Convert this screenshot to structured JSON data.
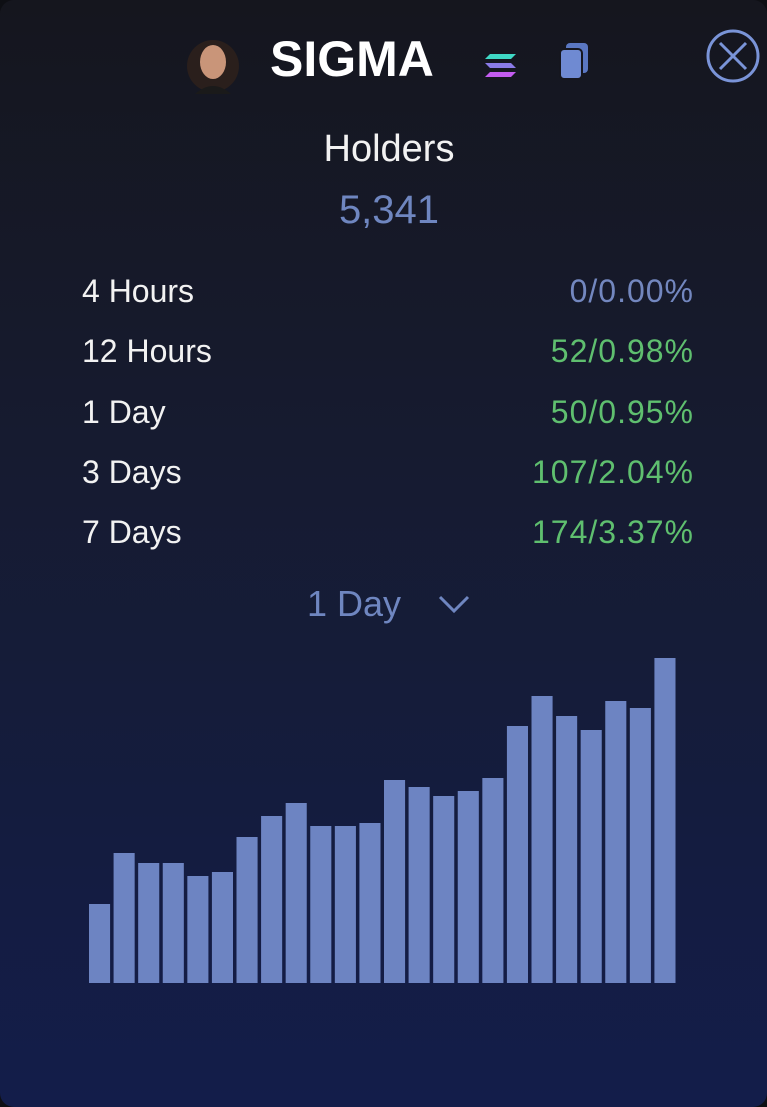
{
  "header": {
    "title": "SIGMA"
  },
  "holders": {
    "label": "Holders",
    "count": "5,341"
  },
  "stats": [
    {
      "label": "4 Hours",
      "value": "0/0.00%",
      "color": "#7387bf"
    },
    {
      "label": "12 Hours",
      "value": "52/0.98%",
      "color": "#5fbf6f"
    },
    {
      "label": "1 Day",
      "value": "50/0.95%",
      "color": "#5fbf6f"
    },
    {
      "label": "3 Days",
      "value": "107/2.04%",
      "color": "#5fbf6f"
    },
    {
      "label": "7 Days",
      "value": "174/3.37%",
      "color": "#5fbf6f"
    }
  ],
  "period_selector": {
    "label": "1 Day"
  },
  "chart_data": {
    "type": "bar",
    "color": "#6d84c2",
    "values": [
      79,
      130,
      120,
      120,
      107,
      111,
      146,
      167,
      180,
      157,
      157,
      160,
      203,
      196,
      187,
      192,
      205,
      257,
      287,
      267,
      253,
      282,
      275,
      325
    ]
  }
}
